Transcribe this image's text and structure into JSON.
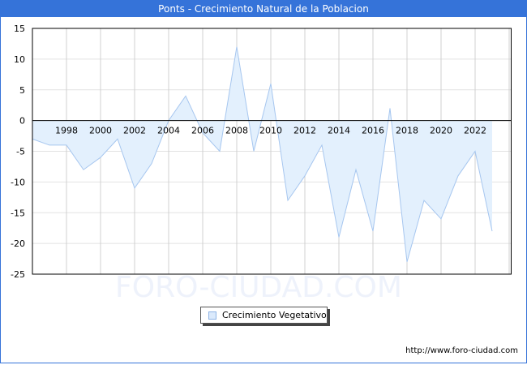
{
  "title": "Ponts - Crecimiento Natural de la Poblacion",
  "watermark": "FORO-CIUDAD.COM",
  "footer_url": "http://www.foro-ciudad.com",
  "colors": {
    "title_bar": "#3573d9",
    "area_fill": "#e3f0fd",
    "line": "#a6c6ef",
    "grid": "#d9d9d9",
    "axis": "#000000"
  },
  "legend": {
    "items": [
      {
        "label": "Crecimiento Vegetativo"
      }
    ]
  },
  "chart_data": {
    "type": "area",
    "title": "Ponts - Crecimiento Natural de la Poblacion",
    "xlabel": "",
    "ylabel": "",
    "x": [
      1996,
      1997,
      1998,
      1999,
      2000,
      2001,
      2002,
      2003,
      2004,
      2005,
      2006,
      2007,
      2008,
      2009,
      2010,
      2011,
      2012,
      2013,
      2014,
      2015,
      2016,
      2017,
      2018,
      2019,
      2020,
      2021,
      2022,
      2023
    ],
    "series": [
      {
        "name": "Crecimiento Vegetativo",
        "values": [
          -3,
          -4,
          -4,
          -8,
          -6,
          -3,
          -11,
          -7,
          0,
          4,
          -2,
          -5,
          12,
          -5,
          6,
          -13,
          -9,
          -4,
          -19,
          -8,
          -18,
          2,
          -23,
          -13,
          -16,
          -9,
          -5,
          -18
        ]
      }
    ],
    "x_tick_labels": [
      "1998",
      "2000",
      "2002",
      "2004",
      "2006",
      "2008",
      "2010",
      "2012",
      "2014",
      "2016",
      "2018",
      "2020",
      "2022"
    ],
    "y_tick_labels": [
      "15",
      "10",
      "5",
      "0",
      "-5",
      "-10",
      "-15",
      "-20",
      "-25"
    ],
    "ylim": [
      -25,
      15
    ],
    "xlim": [
      1996,
      2024.5
    ],
    "grid": true,
    "legend_position": "bottom-center"
  }
}
